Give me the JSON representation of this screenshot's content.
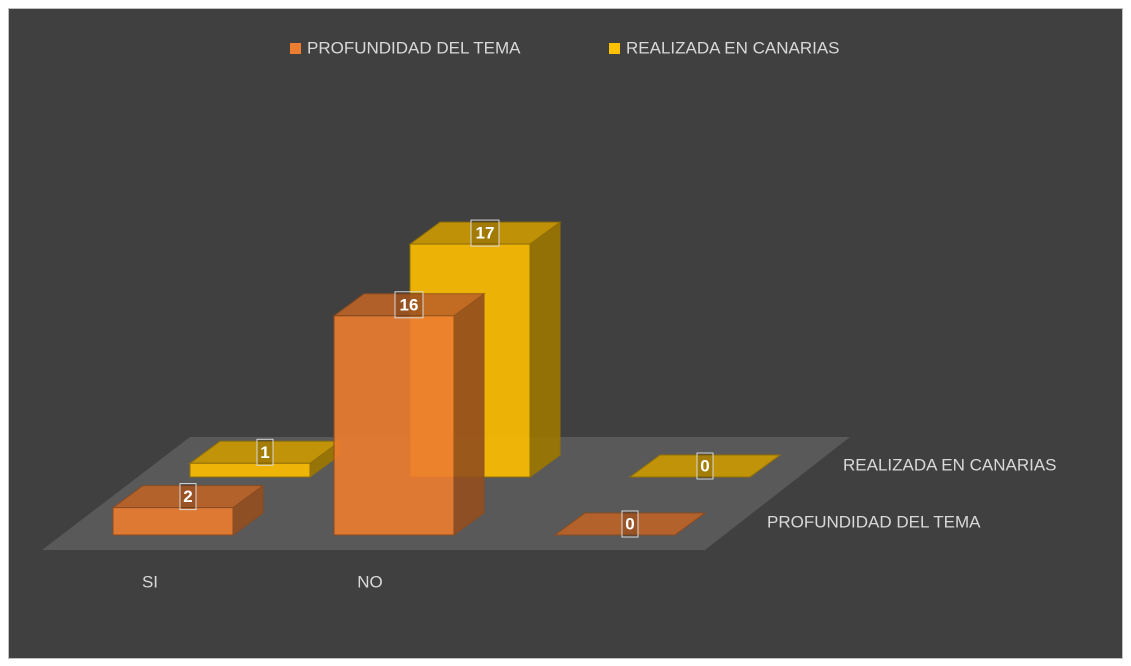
{
  "chart_data": {
    "type": "bar3d",
    "categories": [
      "SI",
      "NO",
      null
    ],
    "series": [
      {
        "name": "PROFUNDIDAD DEL TEMA",
        "color": "#ed7d31",
        "values": [
          2,
          16,
          0
        ]
      },
      {
        "name": "REALIZADA EN CANARIAS",
        "color": "#ffc000",
        "values": [
          1,
          17,
          0
        ]
      }
    ],
    "ylim": [
      0,
      20
    ],
    "legend": "top"
  }
}
